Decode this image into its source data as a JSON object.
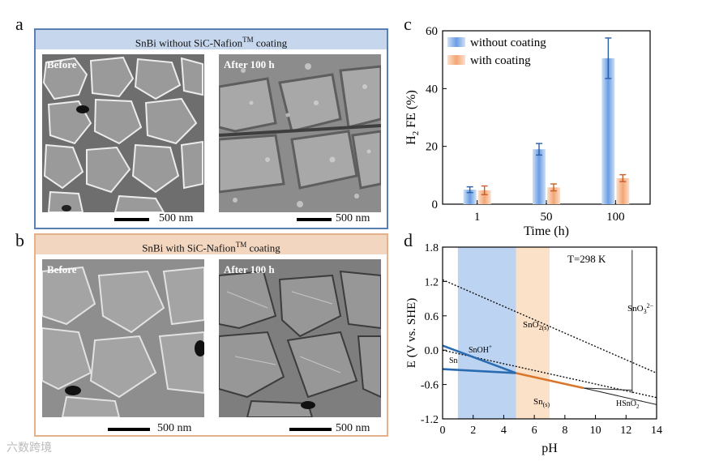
{
  "labels": {
    "a": "a",
    "b": "b",
    "c": "c",
    "d": "d"
  },
  "panel_a": {
    "title": "SnBi without SiC-Nafion",
    "title_sup": "TM",
    "title_suffix": " coating",
    "before": "Before",
    "after": "After 100 h",
    "scale_left": "500 nm",
    "scale_right": "500 nm"
  },
  "panel_b": {
    "title": "SnBi with SiC-Nafion",
    "title_sup": "TM",
    "title_suffix": " coating",
    "before": "Before",
    "after": "After 100 h",
    "scale_left": "500 nm",
    "scale_right": "500 nm"
  },
  "chart_data": [
    {
      "type": "bar",
      "categories": [
        "1",
        "50",
        "100"
      ],
      "series": [
        {
          "name": "without coating",
          "values": [
            5,
            19,
            50.5
          ],
          "errors": [
            1,
            2,
            7
          ],
          "color": "#4f86d9"
        },
        {
          "name": "with coating",
          "values": [
            4.8,
            5.8,
            9
          ],
          "errors": [
            1.5,
            1.2,
            1.2
          ],
          "color": "#f0965a"
        }
      ],
      "xlabel": "Time (h)",
      "ylabel_main": "H",
      "ylabel_sub": "2",
      "ylabel_rest": " FE (%)",
      "yticks": [
        "0",
        "20",
        "40",
        "60"
      ],
      "ylim": [
        0,
        60
      ]
    },
    {
      "type": "line",
      "title": "T=298 K",
      "xlabel": "pH",
      "ylabel": "E (V vs. SHE)",
      "xlim": [
        0,
        14
      ],
      "ylim": [
        -1.2,
        1.8
      ],
      "xticks": [
        "0",
        "2",
        "4",
        "6",
        "8",
        "10",
        "12",
        "14"
      ],
      "yticks": [
        "-1.2",
        "-0.6",
        "0.0",
        "0.6",
        "1.2",
        "1.8"
      ],
      "bands": [
        {
          "name": "blue",
          "from_ph": 1,
          "to_ph": 4.8,
          "color": "#bcd3f2"
        },
        {
          "name": "orange",
          "from_ph": 4.8,
          "to_ph": 7,
          "color": "#fbe1c8"
        }
      ],
      "dotted_lines": [
        {
          "name": "o2-line",
          "points": [
            [
              0,
              1.23
            ],
            [
              14,
              -0.4
            ]
          ]
        },
        {
          "name": "h2-line",
          "points": [
            [
              0,
              0
            ],
            [
              14,
              -0.828
            ]
          ]
        }
      ],
      "boundaries": [
        {
          "name": "sn-snoh",
          "points": [
            [
              0,
              -0.33
            ],
            [
              4.8,
              -0.4
            ]
          ],
          "color": "#2b6cb0"
        },
        {
          "name": "snoh-upper",
          "points": [
            [
              0,
              0.08
            ],
            [
              4.8,
              -0.4
            ]
          ],
          "color": "#2b6cb0"
        },
        {
          "name": "sno2-sn",
          "points": [
            [
              4.8,
              -0.4
            ],
            [
              9.2,
              -0.66
            ]
          ],
          "color": "#d9762b"
        },
        {
          "name": "hsno2-sn",
          "points": [
            [
              9.2,
              -0.66
            ],
            [
              14,
              -0.95
            ]
          ],
          "color": "#222222"
        },
        {
          "name": "sno2-hsno2",
          "points": [
            [
              9.2,
              -0.66
            ],
            [
              12.4,
              -0.7
            ]
          ],
          "color": "#222222"
        },
        {
          "name": "sno3-vertical",
          "points": [
            [
              12.4,
              1.75
            ],
            [
              12.4,
              -0.75
            ]
          ],
          "color": "#222222"
        }
      ],
      "regions": {
        "sno3": "SnO",
        "sno3_sub": "3",
        "sno3_sup": "2−",
        "sno2": "SnO",
        "sno2_sub": "2(s)",
        "snoh": "SnOH",
        "snoh_sup": "+",
        "sn_left": "Sn",
        "sn_s": "Sn",
        "sn_s_sub": "(s)",
        "hsno2": "HSnO",
        "hsno2_sub": "2",
        "hsno2_sup": "−"
      }
    }
  ],
  "watermark": "六数跨境"
}
